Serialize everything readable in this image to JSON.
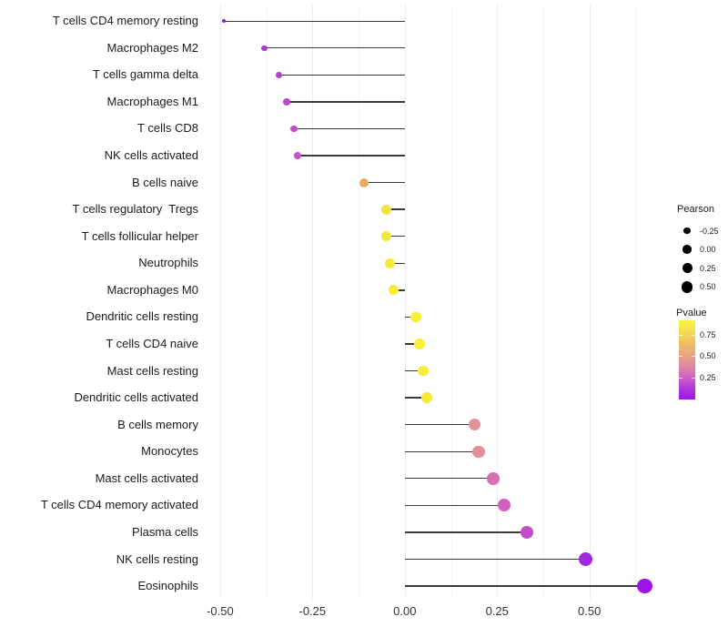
{
  "chart_data": {
    "type": "scatter",
    "subtype": "lollipop",
    "title": "",
    "xlabel": "",
    "ylabel": "",
    "x_ticks": [
      "-0.50",
      "-0.25",
      "0.00",
      "0.25",
      "0.50"
    ],
    "x_tick_values": [
      -0.5,
      -0.25,
      0.0,
      0.25,
      0.5
    ],
    "x_minor_tick_values": [
      -0.375,
      -0.125,
      0.125,
      0.375,
      0.625
    ],
    "xlim": [
      -0.565,
      0.715
    ],
    "grid": "on",
    "size_encodes": "Pearson",
    "color_encodes": "Pvalue",
    "points": [
      {
        "label": "T cells CD4 memory resting",
        "pearson": -0.49,
        "color": "#8e1ec9"
      },
      {
        "label": "Macrophages M2",
        "pearson": -0.38,
        "color": "#ab39cb"
      },
      {
        "label": "T cells gamma delta",
        "pearson": -0.34,
        "color": "#b543ca"
      },
      {
        "label": "Macrophages M1",
        "pearson": -0.32,
        "color": "#bc4ac8"
      },
      {
        "label": "T cells CD8",
        "pearson": -0.3,
        "color": "#c251c6"
      },
      {
        "label": "NK cells activated",
        "pearson": -0.29,
        "color": "#c554c5"
      },
      {
        "label": "B cells naive",
        "pearson": -0.11,
        "color": "#e9ad62"
      },
      {
        "label": "T cells regulatory  Tregs",
        "pearson": -0.05,
        "color": "#f2e33e"
      },
      {
        "label": "T cells follicular helper",
        "pearson": -0.05,
        "color": "#f4e73c"
      },
      {
        "label": "Neutrophils",
        "pearson": -0.04,
        "color": "#f5e93b"
      },
      {
        "label": "Macrophages M0",
        "pearson": -0.03,
        "color": "#f6eb39"
      },
      {
        "label": "Dendritic cells resting",
        "pearson": 0.03,
        "color": "#f7ee37"
      },
      {
        "label": "T cells CD4 naive",
        "pearson": 0.04,
        "color": "#f8ef36"
      },
      {
        "label": "Mast cells resting",
        "pearson": 0.05,
        "color": "#f7ec38"
      },
      {
        "label": "Dendritic cells activated",
        "pearson": 0.06,
        "color": "#f5e93a"
      },
      {
        "label": "B cells memory",
        "pearson": 0.19,
        "color": "#e3909a"
      },
      {
        "label": "Monocytes",
        "pearson": 0.2,
        "color": "#e28e9d"
      },
      {
        "label": "Mast cells activated",
        "pearson": 0.24,
        "color": "#d571b2"
      },
      {
        "label": "T cells CD4 memory activated",
        "pearson": 0.27,
        "color": "#d160c0"
      },
      {
        "label": "Plasma cells",
        "pearson": 0.33,
        "color": "#c44bc9"
      },
      {
        "label": "NK cells resting",
        "pearson": 0.49,
        "color": "#a228de"
      },
      {
        "label": "Eosinophils",
        "pearson": 0.65,
        "color": "#9c15e6"
      }
    ],
    "legend_position": "right"
  },
  "legend_pearson": {
    "title": "Pearson",
    "entries": [
      {
        "label": "-0.25",
        "diameter": 7.5
      },
      {
        "label": "0.00",
        "diameter": 9.5
      },
      {
        "label": "0.25",
        "diameter": 11
      },
      {
        "label": "0.50",
        "diameter": 12.5
      }
    ],
    "dot_color": "#000000"
  },
  "legend_pvalue": {
    "title": "Pvalue",
    "ticks": [
      "0.75",
      "0.50",
      "0.25"
    ],
    "gradient_top_color": "#f8f23b",
    "gradient_bottom_color": "#9e16e8"
  },
  "colors": {
    "stem": "#3a3a3a",
    "grid_major": "#ececec",
    "grid_minor": "#f5f5f5",
    "axis_text": "#333333",
    "label_text": "#1a1a1a"
  }
}
